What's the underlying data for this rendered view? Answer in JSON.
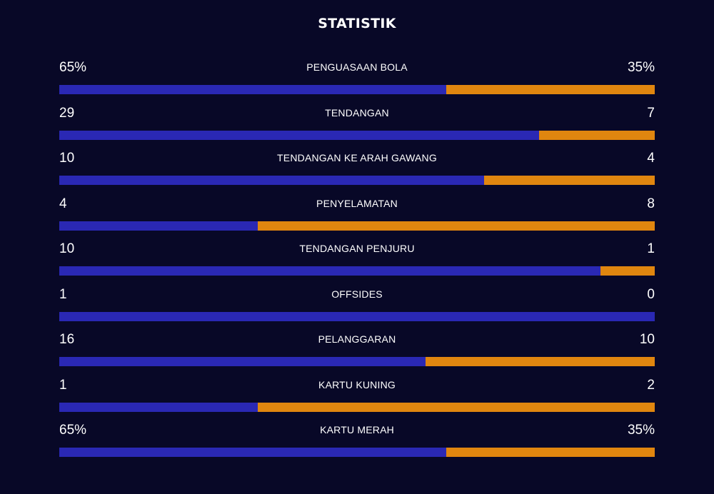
{
  "title": "STATISTIK",
  "colors": {
    "background": "#080827",
    "home": "#2a28b4",
    "away": "#e0860f"
  },
  "stats": [
    {
      "label": "PENGUASAAN BOLA",
      "home": "65%",
      "away": "35%",
      "home_share": 0.65
    },
    {
      "label": "TENDANGAN",
      "home": "29",
      "away": "7",
      "home_share": 0.806
    },
    {
      "label": "TENDANGAN KE ARAH GAWANG",
      "home": "10",
      "away": "4",
      "home_share": 0.714
    },
    {
      "label": "PENYELAMATAN",
      "home": "4",
      "away": "8",
      "home_share": 0.333
    },
    {
      "label": "TENDANGAN PENJURU",
      "home": "10",
      "away": "1",
      "home_share": 0.909
    },
    {
      "label": "OFFSIDES",
      "home": "1",
      "away": "0",
      "home_share": 1.0
    },
    {
      "label": "PELANGGARAN",
      "home": "16",
      "away": "10",
      "home_share": 0.615
    },
    {
      "label": "KARTU KUNING",
      "home": "1",
      "away": "2",
      "home_share": 0.333
    },
    {
      "label": "KARTU MERAH",
      "home": "65%",
      "away": "35%",
      "home_share": 0.65
    }
  ]
}
